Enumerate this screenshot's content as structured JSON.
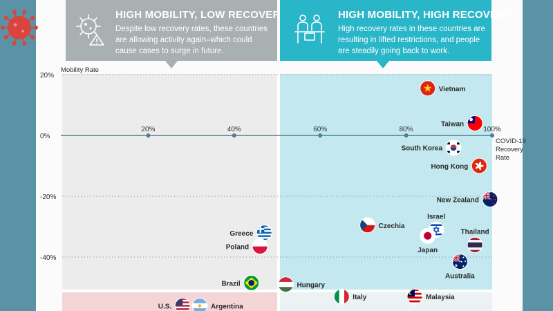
{
  "panels": {
    "low": {
      "title": "HIGH MOBILITY, LOW RECOVERY",
      "lines": [
        "Despite low recovery rates, these countries",
        "are allowing activity again–which could",
        "cause cases to surge in future."
      ]
    },
    "high": {
      "title": "HIGH MOBILITY, HIGH RECOVERY",
      "lines": [
        "High recovery rates in these countries are",
        "resulting in lifted restrictions, and people",
        "are steadily going back to work."
      ]
    }
  },
  "colors": {
    "sidebar": "#5a93a5",
    "panel_low": "#a9b0b2",
    "panel_high": "#29b6c8",
    "zone_low": "#ececec",
    "zone_high": "#c3e8ef",
    "zone_bottom_low": "#f3d5d7",
    "zone_bottom_high": "#eaf2f3",
    "axis": "#4f7f8c",
    "text": "#2a2a2a",
    "virus": "#d9453d"
  },
  "chart_data": {
    "type": "scatter",
    "title": "",
    "xlabel": "COVID-19 Recovery Rate",
    "ylabel": "Mobility Rate",
    "xlim": [
      0,
      100
    ],
    "ylim": [
      -52,
      20
    ],
    "x_ticks": [
      {
        "value": 20,
        "label": "20%"
      },
      {
        "value": 40,
        "label": "40%"
      },
      {
        "value": 60,
        "label": "60%"
      },
      {
        "value": 80,
        "label": "80%"
      },
      {
        "value": 100,
        "label": "100%"
      }
    ],
    "y_ticks": [
      {
        "value": 20,
        "label": "20%"
      },
      {
        "value": 0,
        "label": "0%"
      },
      {
        "value": -20,
        "label": "-20%"
      },
      {
        "value": -40,
        "label": "-40%"
      }
    ],
    "x_title_lines": [
      "COVID-19",
      "Recovery",
      "Rate"
    ],
    "y_title": "Mobility Rate",
    "points": [
      {
        "name": "Vietnam",
        "x": 85,
        "y": 15.5,
        "side": "right",
        "flag": "vietnam"
      },
      {
        "name": "Taiwan",
        "x": 96,
        "y": 4,
        "side": "left",
        "flag": "taiwan"
      },
      {
        "name": "South Korea",
        "x": 91,
        "y": -4,
        "side": "left",
        "flag": "korea"
      },
      {
        "name": "Hong Kong",
        "x": 97,
        "y": -10,
        "side": "left",
        "flag": "hongkong"
      },
      {
        "name": "New Zealand",
        "x": 99.5,
        "y": -21,
        "side": "left",
        "flag": "newzealand"
      },
      {
        "name": "Israel",
        "x": 87,
        "y": -31,
        "side": "top",
        "flag": "israel"
      },
      {
        "name": "Czechia",
        "x": 71,
        "y": -29.5,
        "side": "right",
        "flag": "czechia"
      },
      {
        "name": "Japan",
        "x": 85,
        "y": -33,
        "side": "bottom",
        "flag": "japan"
      },
      {
        "name": "Thailand",
        "x": 96,
        "y": -36,
        "side": "top",
        "flag": "thailand"
      },
      {
        "name": "Australia",
        "x": 92.5,
        "y": -41.5,
        "side": "bottom",
        "flag": "australia"
      },
      {
        "name": "Greece",
        "x": 47,
        "y": -32,
        "side": "left",
        "flag": "greece"
      },
      {
        "name": "Poland",
        "x": 46,
        "y": -36.5,
        "side": "left",
        "flag": "poland"
      },
      {
        "name": "Brazil",
        "x": 44,
        "y": -48.5,
        "side": "left",
        "flag": "brazil"
      },
      {
        "name": "Hungary",
        "x": 52,
        "y": -49,
        "side": "right",
        "flag": "hungary"
      },
      {
        "name": "Italy",
        "x": 65,
        "y": -53,
        "side": "right",
        "flag": "italy"
      },
      {
        "name": "Malaysia",
        "x": 82,
        "y": -53,
        "side": "right",
        "flag": "malaysia"
      },
      {
        "name": "U.S.",
        "x": 28,
        "y": -56,
        "side": "left",
        "flag": "us"
      },
      {
        "name": "Argentina",
        "x": 32,
        "y": -56,
        "side": "right",
        "flag": "argentina"
      }
    ]
  }
}
